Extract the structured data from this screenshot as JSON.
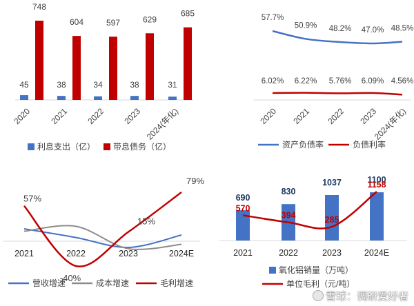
{
  "colors": {
    "blue": "#4472c4",
    "red": "#c00000",
    "gray": "#8c8c8c",
    "axis": "#d9d9d9",
    "text": "#404040"
  },
  "chart_data": [
    {
      "type": "bar",
      "categories": [
        "2020",
        "2021",
        "2022",
        "2023",
        "2024(年化)"
      ],
      "series": [
        {
          "name": "利息支出（亿）",
          "values": [
            45,
            38,
            34,
            38,
            31
          ],
          "color": "#4472c4"
        },
        {
          "name": "带息债务（亿）",
          "values": [
            748,
            604,
            597,
            629,
            685
          ],
          "color": "#c00000"
        }
      ],
      "legend": "bottom"
    },
    {
      "type": "line",
      "categories": [
        "2020",
        "2021",
        "2022",
        "2023",
        "2024(年化)"
      ],
      "series": [
        {
          "name": "资产负债率",
          "values": [
            57.7,
            50.9,
            48.2,
            47.0,
            48.5
          ],
          "labels": [
            "57.7%",
            "50.9%",
            "48.2%",
            "47.0%",
            "48.5%"
          ],
          "color": "#4472c4"
        },
        {
          "name": "负债利率",
          "values": [
            6.02,
            6.22,
            5.76,
            6.09,
            4.56
          ],
          "labels": [
            "6.02%",
            "6.22%",
            "5.76%",
            "6.09%",
            "4.56%"
          ],
          "color": "#c00000"
        }
      ],
      "legend": "bottom"
    },
    {
      "type": "line",
      "categories": [
        "2021",
        "2022",
        "2023",
        "2024E"
      ],
      "series": [
        {
          "name": "营收增速",
          "values": [
            20,
            6,
            -10,
            10
          ],
          "labels": [
            "",
            "",
            "",
            ""
          ],
          "color": "#4472c4"
        },
        {
          "name": "成本增速",
          "values": [
            16,
            24,
            -12,
            -5
          ],
          "labels": [
            "",
            "",
            "",
            ""
          ],
          "color": "#8c8c8c"
        },
        {
          "name": "毛利增速",
          "values": [
            57,
            -40,
            15,
            79
          ],
          "labels": [
            "57%",
            "-40%",
            "15%",
            "79%"
          ],
          "color": "#c00000"
        }
      ],
      "legend": "bottom"
    },
    {
      "type": "bar",
      "categories": [
        "2021",
        "2022",
        "2023",
        "2024E"
      ],
      "series": [
        {
          "name": "氧化铝销量（万吨）",
          "values": [
            690,
            830,
            1037,
            1100
          ],
          "color": "#4472c4"
        },
        {
          "name": "单位毛利（元/吨）",
          "values": [
            570,
            394,
            285,
            1158
          ],
          "color": "#c00000"
        }
      ],
      "legend": "bottom"
    }
  ],
  "watermark": {
    "text": "雪球：调研爱好者"
  }
}
